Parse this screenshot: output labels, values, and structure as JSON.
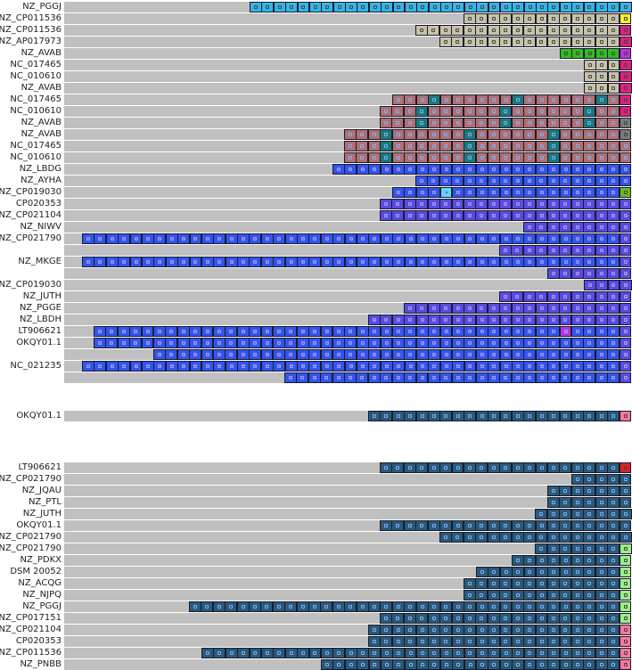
{
  "colors": {
    "track": "#c0c0c0",
    "cyan": "#33b5e5",
    "gray_beige": "#c8c3a8",
    "brown": "#b07070",
    "teal": "#1a7a7a",
    "blue": "#3355ee",
    "violet": "#5a4ae0",
    "dark_teal": "#2a5a78",
    "yellow": "#ffee22",
    "magenta": "#e0207a",
    "green": "#33bb22",
    "purple": "#bb33dd",
    "gray": "#7a7a7a",
    "lime": "#66bb22",
    "red": "#dd2222",
    "pink": "#ff7799",
    "light_green": "#99ee88",
    "light_cyan": "#55ddff"
  },
  "group1": {
    "rows": [
      {
        "label": "NZ_PGGJ",
        "start": 280,
        "color": "cyan",
        "last": "cyan"
      },
      {
        "label": "NZ_CP011536",
        "start": 520,
        "color": "gray_beige",
        "last": "yellow"
      },
      {
        "label": "NZ_CP011536",
        "start": 466,
        "color": "gray_beige",
        "last": "magenta"
      },
      {
        "label": "NZ_AP017973",
        "start": 493,
        "color": "gray_beige",
        "last": "magenta"
      },
      {
        "label": "NZ_AVAB",
        "start": 628,
        "color": "green",
        "last": "purple"
      },
      {
        "label": "NC_017465",
        "start": 655,
        "color": "gray_beige",
        "last": "magenta"
      },
      {
        "label": "NC_010610",
        "start": 655,
        "color": "gray_beige",
        "last": "magenta"
      },
      {
        "label": "NZ_AVAB",
        "start": 655,
        "color": "gray_beige",
        "last": "magenta"
      },
      {
        "label": "NC_017465",
        "start": 440,
        "color": "brown",
        "last": "magenta"
      },
      {
        "label": "NC_010610",
        "start": 426,
        "color": "brown",
        "last": "magenta"
      },
      {
        "label": "NZ_AVAB",
        "start": 426,
        "color": "brown",
        "last": "gray"
      },
      {
        "label": "NZ_AVAB",
        "start": 386,
        "color": "brown",
        "last": "gray"
      },
      {
        "label": "NC_017465",
        "start": 386,
        "color": "brown",
        "last": "brown"
      },
      {
        "label": "NC_010610",
        "start": 386,
        "color": "brown",
        "last": "brown"
      },
      {
        "label": "NZ_LBDG",
        "start": 373,
        "color": "blue",
        "last": "blue"
      },
      {
        "label": "NZ_AYHA",
        "start": 466,
        "color": "blue",
        "last": "blue"
      },
      {
        "label": "NZ_CP019030",
        "start": 440,
        "color": "blue",
        "last": "lime"
      },
      {
        "label": "CP020353",
        "start": 426,
        "color": "violet",
        "last": "violet"
      },
      {
        "label": "NZ_CP021104",
        "start": 426,
        "color": "violet",
        "last": "violet"
      },
      {
        "label": "NZ_NIWV",
        "start": 587,
        "color": "violet",
        "last": "violet"
      },
      {
        "label": "NZ_CP021790",
        "start": 92,
        "color": "blue",
        "last": "violet"
      },
      {
        "label": "",
        "start": 560,
        "color": "violet",
        "last": "violet"
      },
      {
        "label": "NZ_MKGE",
        "start": 92,
        "color": "blue",
        "last": "violet"
      },
      {
        "label": "",
        "start": 614,
        "color": "violet",
        "last": "violet"
      },
      {
        "label": "NZ_CP019030",
        "start": 655,
        "color": "violet",
        "last": "violet"
      },
      {
        "label": "NZ_JUTH",
        "start": 560,
        "color": "violet",
        "last": "violet"
      },
      {
        "label": "NZ_PGGE",
        "start": 453,
        "color": "violet",
        "last": "violet"
      },
      {
        "label": "NZ_LBDH",
        "start": 413,
        "color": "violet",
        "last": "violet"
      },
      {
        "label": "LT906621",
        "start": 105,
        "color": "blue",
        "last": "violet"
      },
      {
        "label": "OKQY01.1",
        "start": 105,
        "color": "blue",
        "last": "violet"
      },
      {
        "label": "",
        "start": 172,
        "color": "blue",
        "last": "violet"
      },
      {
        "label": "NC_021235",
        "start": 92,
        "color": "blue",
        "last": "violet"
      },
      {
        "label": "",
        "start": 319,
        "color": "blue",
        "last": "violet"
      }
    ]
  },
  "group2": {
    "rows": [
      {
        "label": "OKQY01.1",
        "start": 413,
        "color": "dark_teal",
        "last": "pink"
      }
    ]
  },
  "group3": {
    "rows": [
      {
        "label": "LT906621",
        "start": 426,
        "color": "dark_teal",
        "last": "red"
      },
      {
        "label": "NZ_CP021790",
        "start": 641,
        "color": "dark_teal",
        "last": "dark_teal"
      },
      {
        "label": "NZ_JQAU",
        "start": 614,
        "color": "dark_teal",
        "last": "dark_teal"
      },
      {
        "label": "NZ_PTL",
        "start": 614,
        "color": "dark_teal",
        "last": "dark_teal"
      },
      {
        "label": "NZ_JUTH",
        "start": 600,
        "color": "dark_teal",
        "last": "dark_teal"
      },
      {
        "label": "OKQY01.1",
        "start": 426,
        "color": "dark_teal",
        "last": "dark_teal"
      },
      {
        "label": "NZ_CP021790",
        "start": 493,
        "color": "dark_teal",
        "last": "dark_teal"
      },
      {
        "label": "NZ_CP021790",
        "start": 600,
        "color": "dark_teal",
        "last": "light_green"
      },
      {
        "label": "NZ_PDKX",
        "start": 574,
        "color": "dark_teal",
        "last": "light_green"
      },
      {
        "label": "DSM 20052",
        "start": 534,
        "color": "dark_teal",
        "last": "light_green"
      },
      {
        "label": "NZ_ACQG",
        "start": 520,
        "color": "dark_teal",
        "last": "light_green"
      },
      {
        "label": "NZ_NJPQ",
        "start": 520,
        "color": "dark_teal",
        "last": "light_green"
      },
      {
        "label": "NZ_PGGJ",
        "start": 212,
        "color": "dark_teal",
        "last": "light_green"
      },
      {
        "label": "NZ_CP017151",
        "start": 426,
        "color": "dark_teal",
        "last": "light_green"
      },
      {
        "label": "NZ_CP021104",
        "start": 413,
        "color": "dark_teal",
        "last": "pink"
      },
      {
        "label": "CP020353",
        "start": 413,
        "color": "dark_teal",
        "last": "pink"
      },
      {
        "label": "NZ_CP011536",
        "start": 226,
        "color": "dark_teal",
        "last": "pink"
      },
      {
        "label": "NZ_PNBB",
        "start": 360,
        "color": "dark_teal",
        "last": "pink"
      }
    ]
  }
}
